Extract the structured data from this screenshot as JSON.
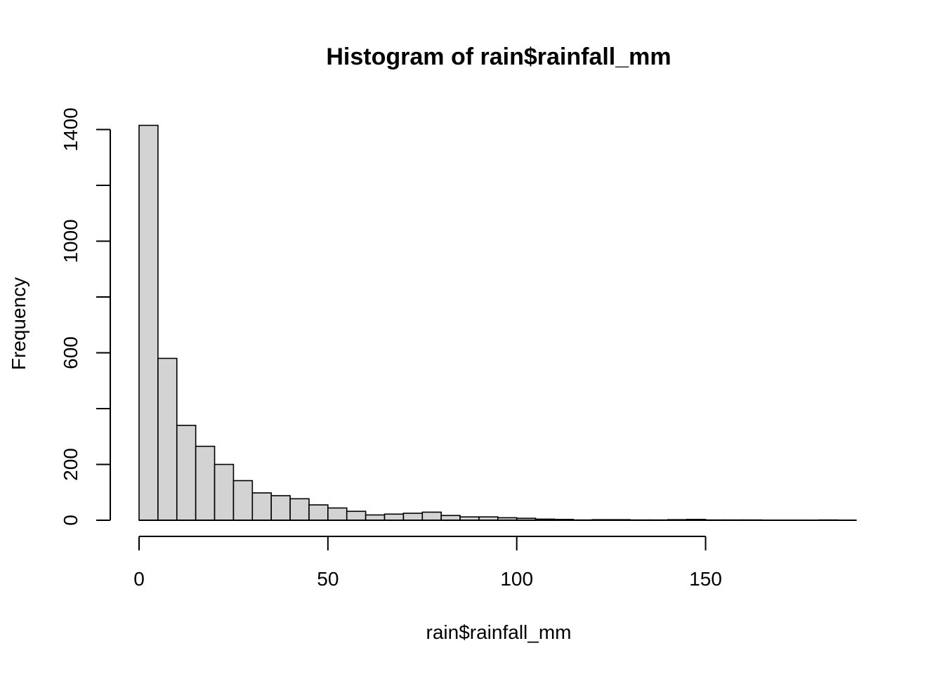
{
  "chart_data": {
    "type": "bar",
    "title": "Histogram of rain$rainfall_mm",
    "xlabel": "rain$rainfall_mm",
    "ylabel": "Frequency",
    "bin_width": 5,
    "x_start": 0,
    "values": [
      1415,
      580,
      340,
      265,
      200,
      142,
      98,
      88,
      77,
      55,
      44,
      32,
      19,
      22,
      25,
      29,
      17,
      12,
      12,
      9,
      7,
      4,
      3,
      1,
      2,
      2,
      1,
      1,
      2,
      3,
      1,
      1,
      1,
      0,
      0,
      0,
      1,
      0
    ],
    "x_ticks": [
      0,
      50,
      100,
      150
    ],
    "x_tick_labels": [
      "0",
      "50",
      "100",
      "150"
    ],
    "y_ticks": [
      0,
      200,
      400,
      600,
      800,
      1000,
      1200,
      1400
    ],
    "y_tick_labels": [
      "0",
      "200",
      "",
      "600",
      "",
      "1000",
      "",
      "1400"
    ],
    "xlim": [
      0,
      190
    ],
    "ylim": [
      0,
      1400
    ],
    "grid": false,
    "bar_fill": "#d3d3d3",
    "bar_stroke": "#000000"
  }
}
